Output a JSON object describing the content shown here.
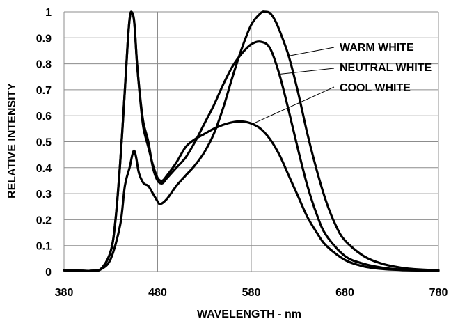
{
  "chart_data": {
    "type": "line",
    "title": "",
    "xlabel": "WAVELENGTH - nm",
    "ylabel": "RELATIVE INTENSITY",
    "xlim": [
      380,
      780
    ],
    "ylim": [
      0,
      1
    ],
    "grid": true,
    "x_ticks": [
      "380",
      "480",
      "580",
      "680",
      "780"
    ],
    "y_ticks": [
      "0",
      "0.1",
      "0.2",
      "0.3",
      "0.4",
      "0.5",
      "0.6",
      "0.7",
      "0.8",
      "0.9",
      "1"
    ],
    "legend_placement": "upper-right, leader lines to curves",
    "series": [
      {
        "name": "WARM WHITE",
        "x": [
          380,
          400,
          410,
          420,
          430,
          440,
          445,
          450,
          453,
          455,
          457,
          460,
          465,
          470,
          475,
          480,
          483,
          490,
          500,
          510,
          520,
          530,
          540,
          550,
          560,
          570,
          580,
          590,
          595,
          600,
          605,
          610,
          620,
          630,
          640,
          650,
          660,
          670,
          680,
          700,
          720,
          740,
          760,
          780
        ],
        "y": [
          0.005,
          0.003,
          0.003,
          0.01,
          0.05,
          0.18,
          0.33,
          0.4,
          0.45,
          0.465,
          0.44,
          0.38,
          0.34,
          0.33,
          0.3,
          0.27,
          0.26,
          0.28,
          0.33,
          0.37,
          0.41,
          0.46,
          0.53,
          0.63,
          0.75,
          0.86,
          0.95,
          0.995,
          1.0,
          0.995,
          0.97,
          0.93,
          0.83,
          0.69,
          0.53,
          0.39,
          0.27,
          0.18,
          0.12,
          0.06,
          0.03,
          0.015,
          0.008,
          0.005
        ]
      },
      {
        "name": "NEUTRAL WHITE",
        "x": [
          380,
          400,
          410,
          420,
          430,
          435,
          440,
          445,
          448,
          450,
          452,
          455,
          458,
          462,
          465,
          470,
          475,
          480,
          485,
          490,
          500,
          510,
          520,
          530,
          540,
          550,
          560,
          570,
          580,
          590,
          600,
          610,
          620,
          630,
          640,
          650,
          660,
          680,
          700,
          720,
          740,
          760,
          780
        ],
        "y": [
          0.005,
          0.003,
          0.003,
          0.012,
          0.08,
          0.2,
          0.42,
          0.7,
          0.88,
          0.97,
          1.0,
          0.96,
          0.8,
          0.65,
          0.57,
          0.5,
          0.4,
          0.35,
          0.34,
          0.36,
          0.4,
          0.44,
          0.5,
          0.57,
          0.64,
          0.72,
          0.79,
          0.84,
          0.875,
          0.885,
          0.86,
          0.76,
          0.62,
          0.47,
          0.33,
          0.22,
          0.14,
          0.06,
          0.03,
          0.015,
          0.008,
          0.005,
          0.003
        ]
      },
      {
        "name": "COOL WHITE",
        "x": [
          380,
          400,
          410,
          420,
          430,
          435,
          440,
          445,
          448,
          450,
          452,
          455,
          458,
          462,
          465,
          470,
          475,
          480,
          485,
          490,
          500,
          510,
          520,
          530,
          540,
          550,
          560,
          570,
          580,
          590,
          600,
          610,
          620,
          630,
          640,
          650,
          660,
          680,
          700,
          720,
          740,
          760,
          780
        ],
        "y": [
          0.005,
          0.003,
          0.003,
          0.012,
          0.08,
          0.2,
          0.42,
          0.7,
          0.88,
          0.97,
          1.0,
          0.96,
          0.8,
          0.64,
          0.55,
          0.48,
          0.41,
          0.36,
          0.35,
          0.37,
          0.42,
          0.48,
          0.51,
          0.53,
          0.55,
          0.565,
          0.575,
          0.578,
          0.57,
          0.55,
          0.51,
          0.45,
          0.37,
          0.29,
          0.21,
          0.15,
          0.1,
          0.045,
          0.02,
          0.01,
          0.006,
          0.004,
          0.003
        ]
      }
    ]
  }
}
